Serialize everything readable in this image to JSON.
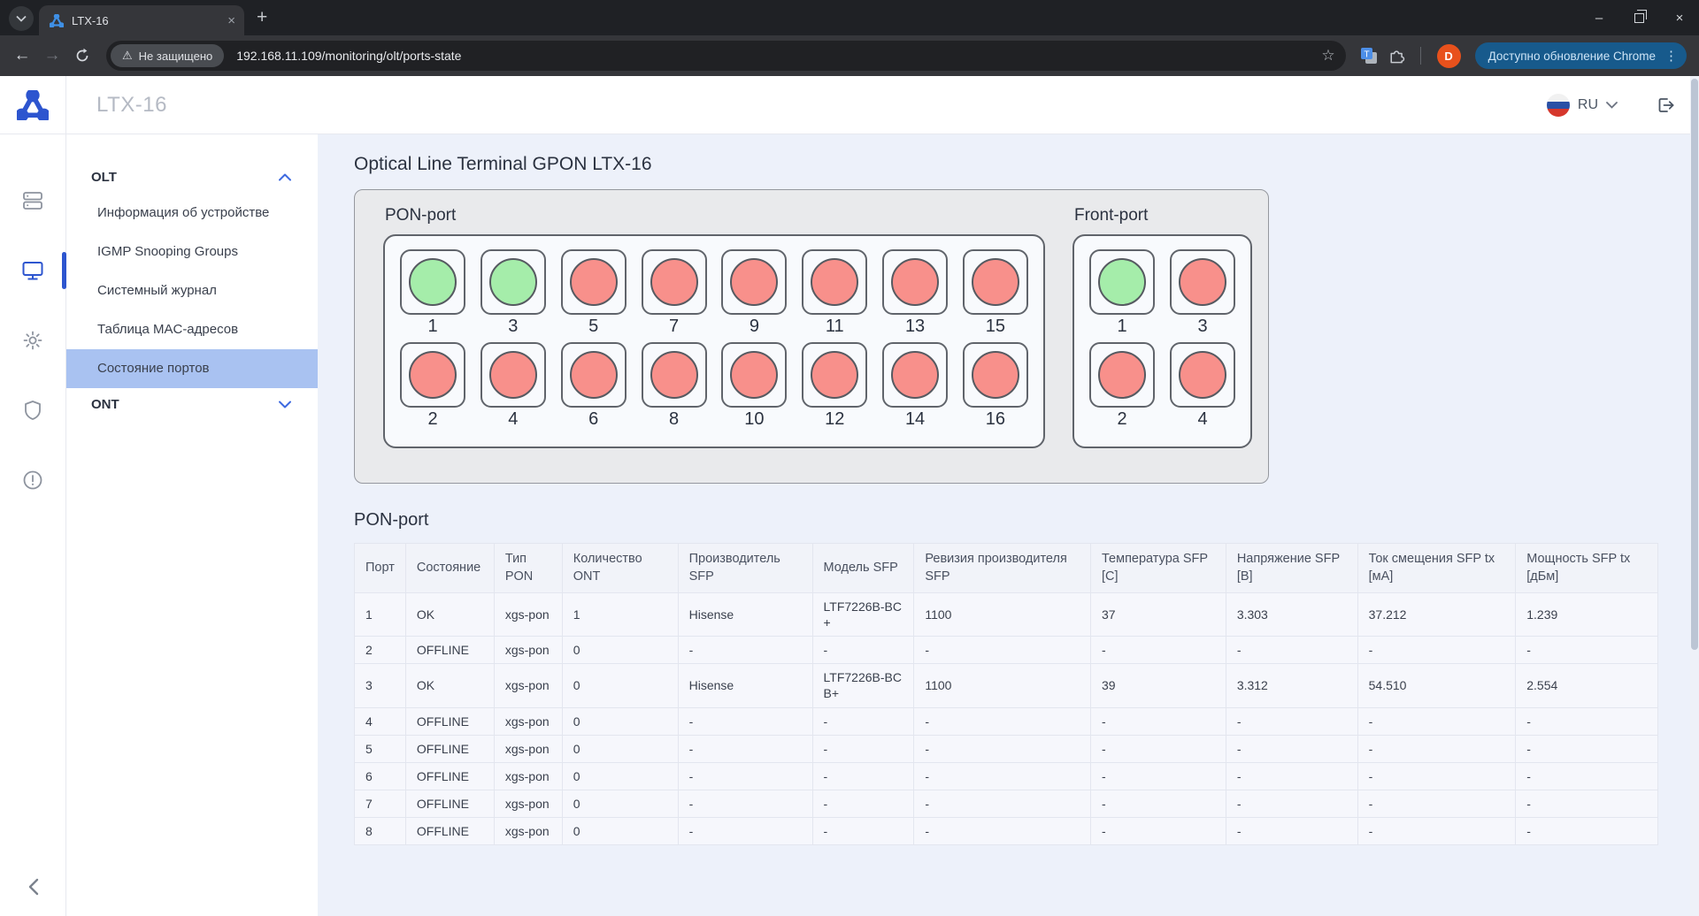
{
  "browser": {
    "tab_title": "LTX-16",
    "security_label": "Не защищено",
    "url": "192.168.11.109/monitoring/olt/ports-state",
    "update_label": "Доступно обновление Chrome",
    "avatar_letter": "D"
  },
  "icons": {
    "back": "←",
    "forward": "→",
    "star": "☆",
    "warning": "⚠",
    "new_tab": "+",
    "minimize": "–",
    "close": "×",
    "tab_close": "×",
    "menu_dots": "⋮"
  },
  "header": {
    "title": "LTX-16",
    "language": "RU"
  },
  "sidebar": {
    "olt": {
      "label": "OLT",
      "items": [
        "Информация об устройстве",
        "IGMP Snooping Groups",
        "Системный журнал",
        "Таблица MAC-адресов",
        "Состояние портов"
      ],
      "selected": "Состояние портов"
    },
    "ont": {
      "label": "ONT"
    }
  },
  "main": {
    "title": "Optical Line Terminal GPON LTX-16",
    "pon_panel_label": "PON-port",
    "front_panel_label": "Front-port",
    "table_title": "PON-port",
    "pon_ports": [
      {
        "num": "1",
        "status": "ok"
      },
      {
        "num": "3",
        "status": "ok"
      },
      {
        "num": "5",
        "status": "offline"
      },
      {
        "num": "7",
        "status": "offline"
      },
      {
        "num": "9",
        "status": "offline"
      },
      {
        "num": "11",
        "status": "offline"
      },
      {
        "num": "13",
        "status": "offline"
      },
      {
        "num": "15",
        "status": "offline"
      },
      {
        "num": "2",
        "status": "offline"
      },
      {
        "num": "4",
        "status": "offline"
      },
      {
        "num": "6",
        "status": "offline"
      },
      {
        "num": "8",
        "status": "offline"
      },
      {
        "num": "10",
        "status": "offline"
      },
      {
        "num": "12",
        "status": "offline"
      },
      {
        "num": "14",
        "status": "offline"
      },
      {
        "num": "16",
        "status": "offline"
      }
    ],
    "front_ports": [
      {
        "num": "1",
        "status": "ok"
      },
      {
        "num": "3",
        "status": "offline"
      },
      {
        "num": "2",
        "status": "offline"
      },
      {
        "num": "4",
        "status": "offline"
      }
    ],
    "table": {
      "columns": [
        "Порт",
        "Состояние",
        "Тип PON",
        "Количество ONT",
        "Производитель SFP",
        "Модель SFP",
        "Ревизия производителя SFP",
        "Температура SFP [C]",
        "Напряжение SFP [B]",
        "Ток смещения SFP tx [мА]",
        "Мощность SFP tx [дБм]"
      ],
      "rows": [
        [
          "1",
          "OK",
          "xgs-pon",
          "1",
          "Hisense",
          "LTF7226B-BC+",
          "1100",
          "37",
          "3.303",
          "37.212",
          "1.239"
        ],
        [
          "2",
          "OFFLINE",
          "xgs-pon",
          "0",
          "-",
          "-",
          "-",
          "-",
          "-",
          "-",
          "-"
        ],
        [
          "3",
          "OK",
          "xgs-pon",
          "0",
          "Hisense",
          "LTF7226B-BCB+",
          "1100",
          "39",
          "3.312",
          "54.510",
          "2.554"
        ],
        [
          "4",
          "OFFLINE",
          "xgs-pon",
          "0",
          "-",
          "-",
          "-",
          "-",
          "-",
          "-",
          "-"
        ],
        [
          "5",
          "OFFLINE",
          "xgs-pon",
          "0",
          "-",
          "-",
          "-",
          "-",
          "-",
          "-",
          "-"
        ],
        [
          "6",
          "OFFLINE",
          "xgs-pon",
          "0",
          "-",
          "-",
          "-",
          "-",
          "-",
          "-",
          "-"
        ],
        [
          "7",
          "OFFLINE",
          "xgs-pon",
          "0",
          "-",
          "-",
          "-",
          "-",
          "-",
          "-",
          "-"
        ],
        [
          "8",
          "OFFLINE",
          "xgs-pon",
          "0",
          "-",
          "-",
          "-",
          "-",
          "-",
          "-",
          "-"
        ]
      ]
    }
  },
  "colors": {
    "ok_lamp": "#a5edaa",
    "offline_lamp": "#f8908b",
    "accent_blue": "#2d55cf",
    "selected_item_bg": "#a9c2f1"
  }
}
